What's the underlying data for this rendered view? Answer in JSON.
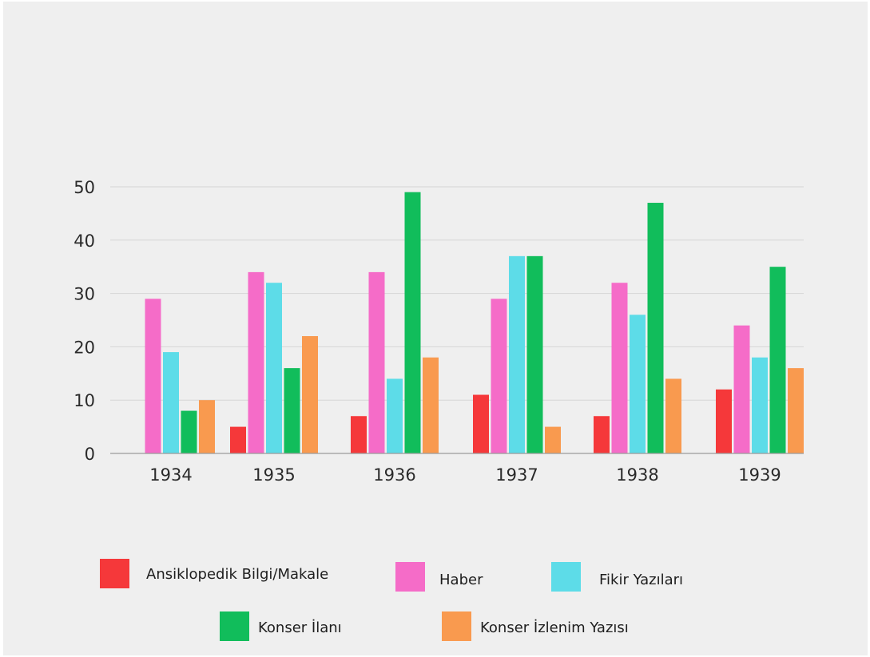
{
  "chart_data": {
    "type": "bar",
    "categories": [
      "1934",
      "1935",
      "1936",
      "1937",
      "1938",
      "1939"
    ],
    "series": [
      {
        "name": "Ansiklopedik Bilgi/Makale",
        "color": "#f5383a",
        "values": [
          0,
          5,
          7,
          11,
          7,
          12
        ]
      },
      {
        "name": "Haber",
        "color": "#f56cc8",
        "values": [
          29,
          34,
          34,
          29,
          32,
          24
        ]
      },
      {
        "name": "Fikir Yazıları",
        "color": "#5ddce8",
        "values": [
          19,
          32,
          14,
          37,
          26,
          18
        ]
      },
      {
        "name": "Konser İlanı",
        "color": "#11bd5b",
        "values": [
          8,
          16,
          49,
          37,
          47,
          35
        ]
      },
      {
        "name": "Konser İzlenim Yazısı",
        "color": "#f99a4f",
        "values": [
          10,
          22,
          18,
          5,
          14,
          16
        ]
      }
    ],
    "y_ticks": [
      "0",
      "10",
      "20",
      "30",
      "40",
      "50"
    ],
    "ylim": [
      0,
      50
    ],
    "grid": true,
    "legend_position": "bottom"
  },
  "colors": {
    "background": "#efefef",
    "grid": "#d6d6d6",
    "axis": "#9a9a9a",
    "text": "#2a2a2a"
  }
}
